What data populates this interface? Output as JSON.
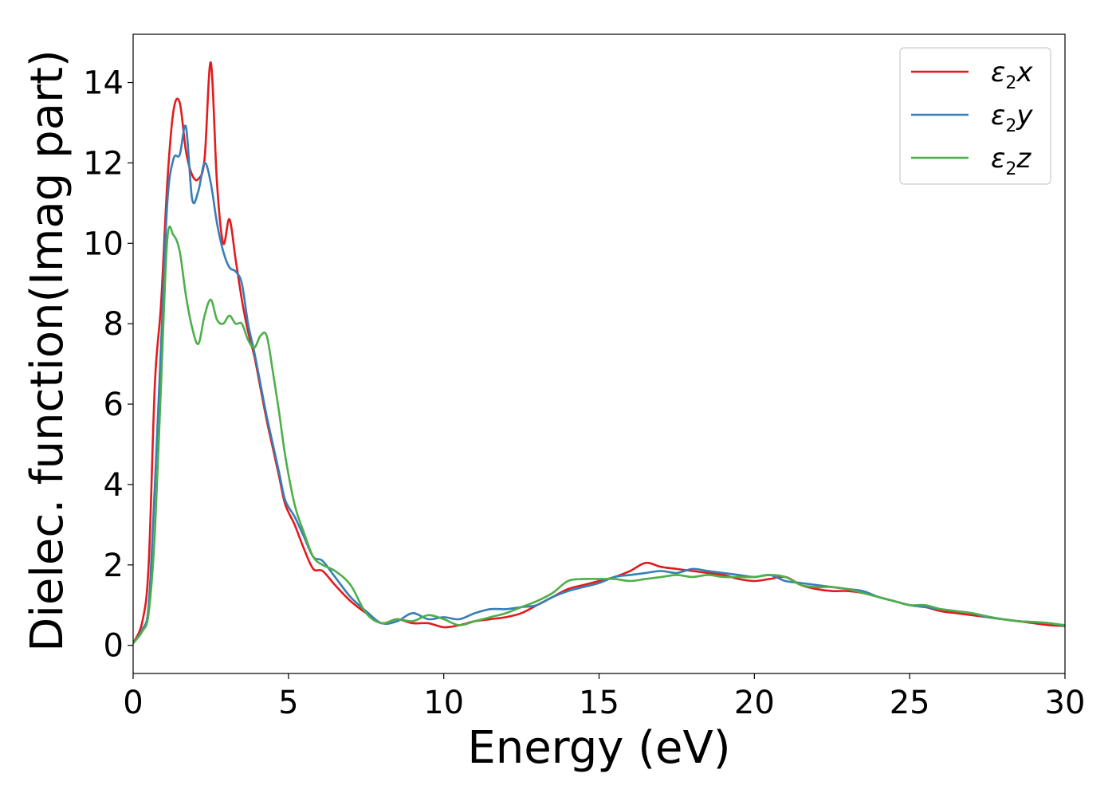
{
  "chart_data": {
    "type": "line",
    "xlabel": "Energy (eV)",
    "ylabel": "Dielec. function(Imag part)",
    "xlim": [
      0,
      30
    ],
    "ylim": [
      -0.7,
      15.2
    ],
    "xticks": [
      0,
      5,
      10,
      15,
      20,
      25,
      30
    ],
    "yticks": [
      0,
      2,
      4,
      6,
      8,
      10,
      12,
      14
    ],
    "grid": false,
    "legend_position": "top-right",
    "series": [
      {
        "name": "ε2x",
        "legend": {
          "base": "ε",
          "sub": "2",
          "tail": "x"
        },
        "color": "#e41a1c",
        "x": [
          0,
          0.3,
          0.5,
          0.7,
          0.9,
          1.1,
          1.3,
          1.5,
          1.7,
          1.9,
          2.1,
          2.3,
          2.5,
          2.7,
          2.9,
          3.1,
          3.3,
          3.5,
          3.7,
          3.9,
          4.1,
          4.3,
          4.5,
          4.7,
          4.9,
          5.2,
          5.5,
          5.8,
          6.1,
          6.5,
          7.0,
          7.5,
          8.0,
          8.5,
          9.0,
          9.5,
          10.0,
          10.5,
          11.0,
          11.5,
          12.0,
          12.5,
          13.0,
          13.5,
          14.0,
          14.5,
          15.0,
          15.5,
          16.0,
          16.5,
          17.0,
          17.5,
          18.0,
          18.5,
          19.0,
          19.5,
          20.0,
          20.5,
          21.0,
          21.5,
          22.0,
          22.5,
          23.0,
          23.5,
          24.0,
          24.5,
          25.0,
          25.5,
          26.0,
          26.5,
          27.0,
          27.5,
          28.0,
          28.5,
          29.0,
          29.5,
          30.0
        ],
        "y": [
          0.05,
          0.6,
          2.0,
          6.5,
          8.5,
          11.5,
          13.3,
          13.5,
          12.3,
          11.7,
          11.6,
          12.1,
          14.5,
          11.5,
          10.0,
          10.6,
          9.6,
          8.6,
          7.8,
          7.2,
          6.4,
          5.6,
          4.9,
          4.2,
          3.5,
          3.0,
          2.4,
          1.9,
          1.85,
          1.5,
          1.1,
          0.8,
          0.55,
          0.65,
          0.55,
          0.55,
          0.45,
          0.5,
          0.6,
          0.65,
          0.7,
          0.8,
          1.0,
          1.2,
          1.4,
          1.5,
          1.6,
          1.7,
          1.85,
          2.05,
          1.95,
          1.9,
          1.85,
          1.8,
          1.75,
          1.65,
          1.6,
          1.65,
          1.7,
          1.5,
          1.4,
          1.35,
          1.35,
          1.3,
          1.2,
          1.1,
          1.0,
          0.95,
          0.85,
          0.8,
          0.75,
          0.7,
          0.65,
          0.6,
          0.55,
          0.5,
          0.48
        ]
      },
      {
        "name": "ε2y",
        "legend": {
          "base": "ε",
          "sub": "2",
          "tail": "y"
        },
        "color": "#377eb8",
        "x": [
          0,
          0.3,
          0.5,
          0.7,
          0.9,
          1.1,
          1.3,
          1.5,
          1.7,
          1.9,
          2.1,
          2.3,
          2.5,
          2.7,
          2.9,
          3.1,
          3.3,
          3.5,
          3.7,
          3.9,
          4.1,
          4.3,
          4.5,
          4.7,
          4.9,
          5.2,
          5.5,
          5.8,
          6.1,
          6.5,
          7.0,
          7.5,
          8.0,
          8.5,
          9.0,
          9.5,
          10.0,
          10.5,
          11.0,
          11.5,
          12.0,
          12.5,
          13.0,
          13.5,
          14.0,
          14.5,
          15.0,
          15.5,
          16.0,
          16.5,
          17.0,
          17.5,
          18.0,
          18.5,
          19.0,
          19.5,
          20.0,
          20.5,
          21.0,
          21.5,
          22.0,
          22.5,
          23.0,
          23.5,
          24.0,
          24.5,
          25.0,
          25.5,
          26.0,
          26.5,
          27.0,
          27.5,
          28.0,
          28.5,
          29.0,
          29.5,
          30.0
        ],
        "y": [
          0.05,
          0.4,
          1.0,
          4.0,
          7.5,
          11.0,
          12.1,
          12.2,
          12.9,
          11.1,
          11.3,
          12.0,
          11.5,
          10.5,
          9.8,
          9.4,
          9.3,
          9.0,
          8.0,
          7.3,
          6.5,
          5.7,
          5.0,
          4.3,
          3.6,
          3.2,
          2.7,
          2.2,
          2.1,
          1.7,
          1.2,
          0.85,
          0.55,
          0.6,
          0.8,
          0.65,
          0.7,
          0.65,
          0.8,
          0.9,
          0.9,
          0.95,
          1.0,
          1.2,
          1.35,
          1.45,
          1.55,
          1.7,
          1.75,
          1.8,
          1.85,
          1.8,
          1.9,
          1.85,
          1.8,
          1.75,
          1.7,
          1.75,
          1.6,
          1.55,
          1.5,
          1.45,
          1.4,
          1.35,
          1.2,
          1.1,
          1.0,
          0.95,
          0.9,
          0.85,
          0.8,
          0.7,
          0.65,
          0.6,
          0.58,
          0.55,
          0.48
        ]
      },
      {
        "name": "ε2z",
        "legend": {
          "base": "ε",
          "sub": "2",
          "tail": "z"
        },
        "color": "#4daf4a",
        "x": [
          0,
          0.3,
          0.5,
          0.7,
          0.9,
          1.1,
          1.3,
          1.5,
          1.7,
          1.9,
          2.1,
          2.3,
          2.5,
          2.7,
          2.9,
          3.1,
          3.3,
          3.5,
          3.7,
          3.9,
          4.1,
          4.3,
          4.5,
          4.7,
          4.9,
          5.2,
          5.5,
          5.8,
          6.1,
          6.5,
          7.0,
          7.5,
          8.0,
          8.5,
          9.0,
          9.5,
          10.0,
          10.5,
          11.0,
          11.5,
          12.0,
          12.5,
          13.0,
          13.5,
          14.0,
          14.5,
          15.0,
          15.5,
          16.0,
          16.5,
          17.0,
          17.5,
          18.0,
          18.5,
          19.0,
          19.5,
          20.0,
          20.5,
          21.0,
          21.5,
          22.0,
          22.5,
          23.0,
          23.5,
          24.0,
          24.5,
          25.0,
          25.5,
          26.0,
          26.5,
          27.0,
          27.5,
          28.0,
          28.5,
          29.0,
          29.5,
          30.0
        ],
        "y": [
          0.05,
          0.35,
          0.8,
          2.8,
          6.5,
          10.1,
          10.2,
          9.8,
          8.7,
          7.9,
          7.5,
          8.2,
          8.6,
          8.1,
          8.0,
          8.2,
          8.0,
          8.0,
          7.6,
          7.4,
          7.7,
          7.7,
          6.8,
          5.8,
          4.7,
          3.5,
          2.8,
          2.2,
          2.0,
          1.85,
          1.5,
          0.8,
          0.55,
          0.65,
          0.6,
          0.75,
          0.65,
          0.5,
          0.6,
          0.7,
          0.8,
          0.95,
          1.1,
          1.3,
          1.6,
          1.65,
          1.65,
          1.65,
          1.6,
          1.65,
          1.7,
          1.75,
          1.7,
          1.75,
          1.7,
          1.7,
          1.7,
          1.75,
          1.7,
          1.5,
          1.45,
          1.45,
          1.4,
          1.3,
          1.2,
          1.1,
          1.0,
          1.0,
          0.9,
          0.85,
          0.8,
          0.72,
          0.65,
          0.6,
          0.58,
          0.55,
          0.5
        ]
      }
    ]
  }
}
